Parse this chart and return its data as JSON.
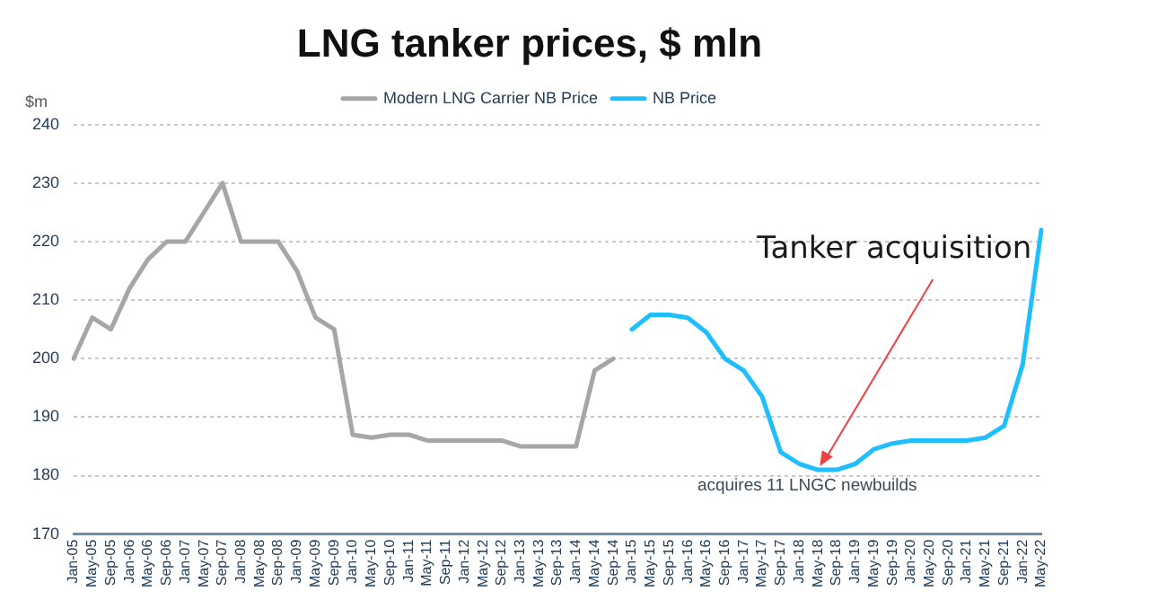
{
  "chart_data": {
    "type": "line",
    "title": "LNG tanker prices, $ mln",
    "ylabel": "$m",
    "categories": [
      "Jan-05",
      "May-05",
      "Sep-05",
      "Jan-06",
      "May-06",
      "Sep-06",
      "Jan-07",
      "May-07",
      "Sep-07",
      "Jan-08",
      "May-08",
      "Sep-08",
      "Jan-09",
      "May-09",
      "Sep-09",
      "Jan-10",
      "May-10",
      "Sep-10",
      "Jan-11",
      "May-11",
      "Sep-11",
      "Jan-12",
      "May-12",
      "Sep-12",
      "Jan-13",
      "May-13",
      "Sep-13",
      "Jan-14",
      "May-14",
      "Sep-14",
      "Jan-15",
      "May-15",
      "Sep-15",
      "Jan-16",
      "May-16",
      "Sep-16",
      "Jan-17",
      "May-17",
      "Sep-17",
      "Jan-18",
      "May-18",
      "Sep-18",
      "Jan-19",
      "May-19",
      "Sep-19",
      "Jan-20",
      "May-20",
      "Sep-20",
      "Jan-21",
      "May-21",
      "Sep-21",
      "Jan-22",
      "May-22"
    ],
    "series": [
      {
        "name": "Modern LNG Carrier NB Price",
        "color": "#a6a6a6",
        "values": [
          200,
          207,
          205,
          212,
          217,
          220,
          220,
          225,
          230,
          220,
          220,
          220,
          215,
          207,
          205,
          187,
          186.5,
          187,
          187,
          186,
          186,
          186,
          186,
          186,
          185,
          185,
          185,
          185,
          198,
          200,
          null,
          null,
          null,
          null,
          null,
          null,
          null,
          null,
          null,
          null,
          null,
          null,
          null,
          null,
          null,
          null,
          null,
          null,
          null,
          null,
          null,
          null,
          null
        ]
      },
      {
        "name": "NB Price",
        "color": "#1fbfff",
        "values": [
          null,
          null,
          null,
          null,
          null,
          null,
          null,
          null,
          null,
          null,
          null,
          null,
          null,
          null,
          null,
          null,
          null,
          null,
          null,
          null,
          null,
          null,
          null,
          null,
          null,
          null,
          null,
          null,
          null,
          null,
          205,
          207.5,
          207.5,
          207,
          204.5,
          200,
          198,
          193.5,
          184,
          182,
          181,
          181,
          182,
          184.5,
          185.5,
          186,
          186,
          186,
          186,
          186.5,
          188.5,
          199,
          222
        ]
      }
    ],
    "ylim": [
      170,
      240
    ],
    "yticks": [
      170,
      180,
      190,
      200,
      210,
      220,
      230,
      240
    ],
    "grid": "y",
    "legend": "top",
    "marker": "none",
    "line_style": "solid",
    "annotations": [
      {
        "text": "Tanker acquisition",
        "x": "May-18",
        "y": 181
      },
      {
        "text": "acquires 11 LNGC newbuilds",
        "x": "May-18",
        "y": 181
      }
    ]
  }
}
